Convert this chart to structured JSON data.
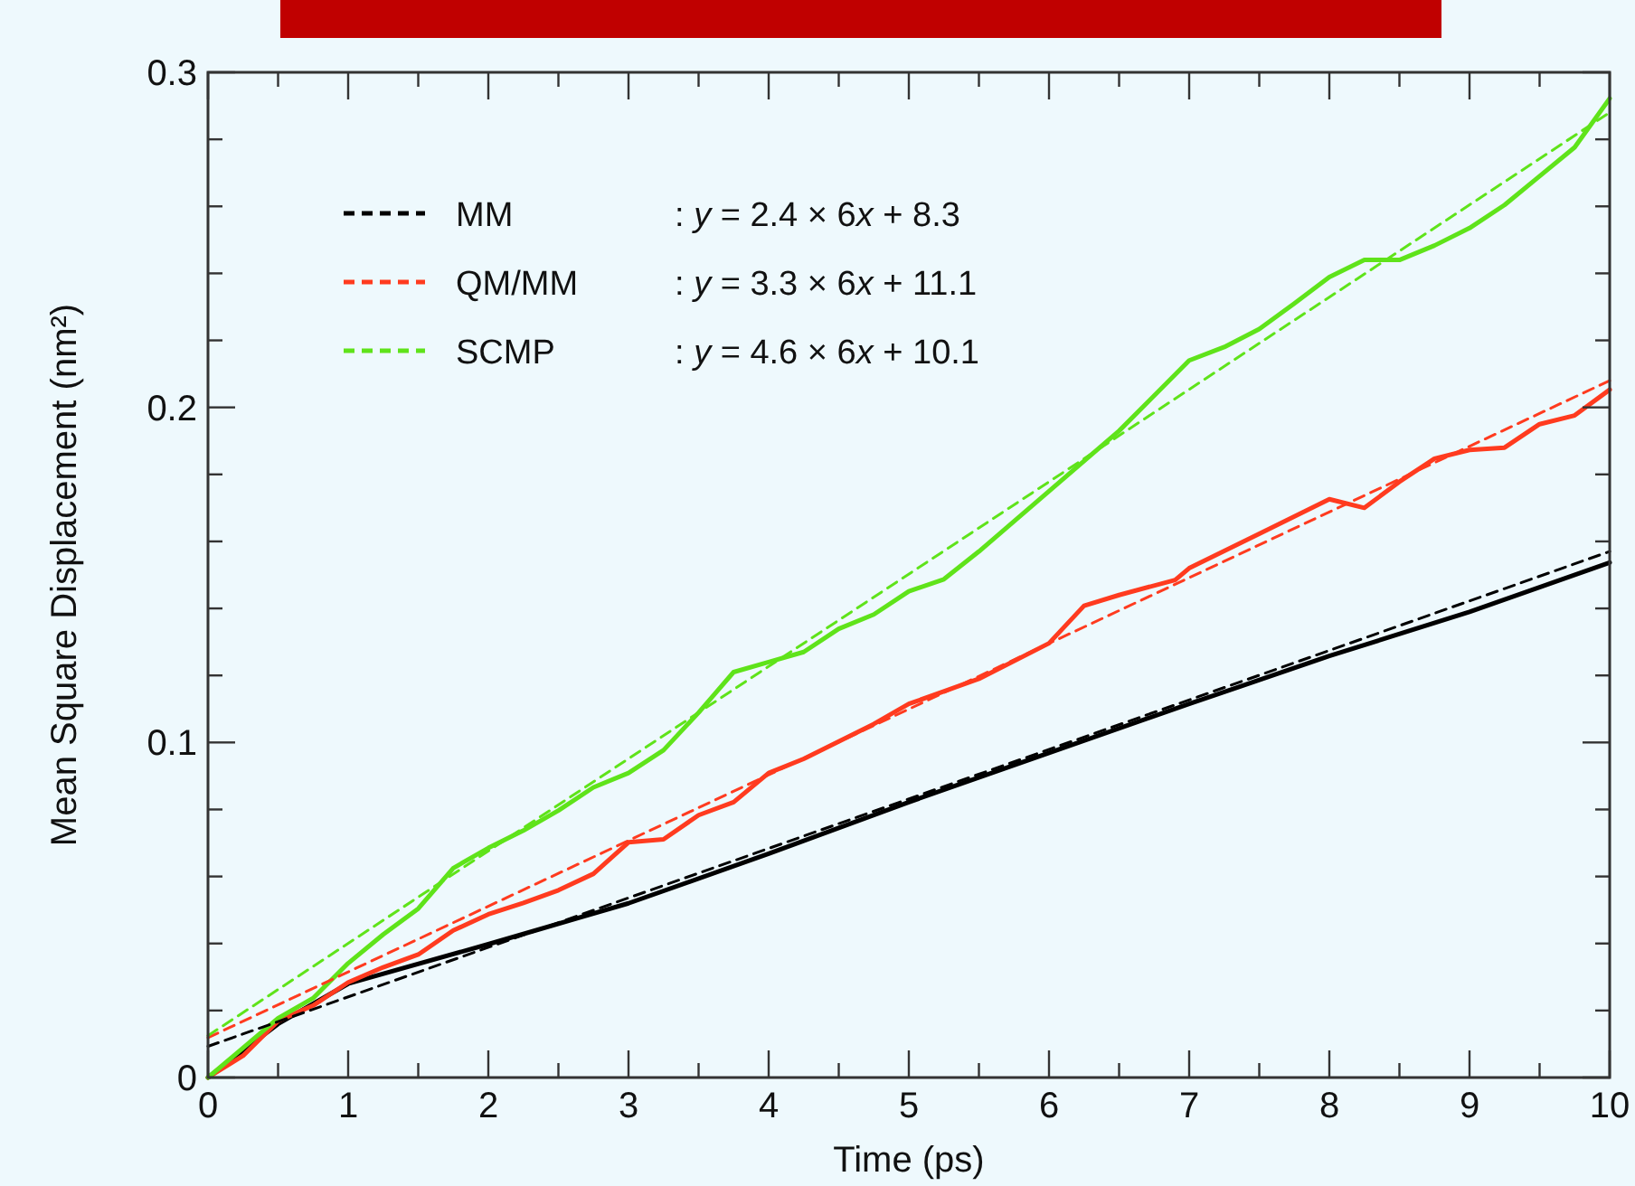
{
  "chart_data": {
    "type": "line",
    "xlabel": "Time (ps)",
    "ylabel": "Mean Square Displacement (nm²)",
    "xlim": [
      0,
      10
    ],
    "ylim": [
      0,
      0.3
    ],
    "xticks": [
      0,
      {
        "value": 0.5,
        "label": null
      },
      1,
      {
        "value": 1.5,
        "label": null
      },
      2,
      {
        "value": 2.5,
        "label": null
      },
      3,
      {
        "value": 3.5,
        "label": null
      },
      4,
      {
        "value": 4.5,
        "label": null
      },
      5,
      {
        "value": 5.5,
        "label": null
      },
      6,
      {
        "value": 6.5,
        "label": null
      },
      7,
      {
        "value": 7.5,
        "label": null
      },
      8,
      {
        "value": 8.5,
        "label": null
      },
      9,
      {
        "value": 9.5,
        "label": null
      },
      10
    ],
    "yticks": [
      0,
      {
        "value": 0.02,
        "label": null
      },
      {
        "value": 0.04,
        "label": null
      },
      {
        "value": 0.06,
        "label": null
      },
      {
        "value": 0.08,
        "label": null
      },
      0.1,
      {
        "value": 0.12,
        "label": null
      },
      {
        "value": 0.14,
        "label": null
      },
      {
        "value": 0.16,
        "label": null
      },
      {
        "value": 0.18,
        "label": null
      },
      0.2,
      {
        "value": 0.22,
        "label": null
      },
      {
        "value": 0.24,
        "label": null
      },
      {
        "value": 0.26,
        "label": null
      },
      {
        "value": 0.28,
        "label": null
      },
      0.3
    ],
    "grid": false,
    "legend": "top left",
    "marker": "none",
    "series": [
      {
        "color": "#000000",
        "line_style": "solid",
        "x": [
          0,
          0.5,
          1,
          2,
          3,
          4,
          5,
          6,
          7,
          8,
          9,
          10
        ],
        "values": [
          0,
          0.016,
          0.028,
          0.0398,
          0.052,
          0.0668,
          0.0822,
          0.0969,
          0.1115,
          0.1258,
          0.139,
          0.1537
        ]
      },
      {
        "color": "#ff3b1f",
        "line_style": "solid",
        "x": [
          0,
          0.25,
          0.5,
          0.75,
          1,
          1.25,
          1.5,
          1.75,
          2,
          2.25,
          2.5,
          2.75,
          3,
          3.25,
          3.5,
          3.75,
          4,
          4.25,
          4.5,
          4.75,
          5,
          5.5,
          6,
          6.25,
          6.5,
          6.9,
          7,
          7.5,
          8,
          8.25,
          8.5,
          8.75,
          9,
          9.25,
          9.5,
          9.75,
          10
        ],
        "values": [
          0,
          0.0065,
          0.0169,
          0.0215,
          0.0284,
          0.0329,
          0.0367,
          0.0439,
          0.0487,
          0.0521,
          0.0559,
          0.0608,
          0.0702,
          0.0711,
          0.0783,
          0.0822,
          0.0909,
          0.0951,
          0.1003,
          0.1055,
          0.1115,
          0.119,
          0.1296,
          0.1408,
          0.144,
          0.1485,
          0.152,
          0.1623,
          0.1726,
          0.17,
          0.1778,
          0.1847,
          0.1873,
          0.188,
          0.195,
          0.1976,
          0.2053
        ]
      },
      {
        "color": "#5fe31a",
        "line_style": "solid",
        "x": [
          0,
          0.5,
          0.75,
          1,
          1.25,
          1.5,
          1.75,
          2,
          2.25,
          2.5,
          2.75,
          3,
          3.25,
          3.5,
          3.75,
          4,
          4.25,
          4.5,
          4.75,
          5,
          5.25,
          5.5,
          6,
          6.5,
          7,
          7.25,
          7.5,
          7.75,
          8,
          8.25,
          8.5,
          8.75,
          9,
          9.25,
          9.5,
          9.75,
          10
        ],
        "values": [
          0,
          0.0177,
          0.0237,
          0.0341,
          0.0427,
          0.0504,
          0.0625,
          0.0685,
          0.0737,
          0.0797,
          0.0866,
          0.0909,
          0.0977,
          0.1089,
          0.121,
          0.124,
          0.127,
          0.1339,
          0.1382,
          0.1451,
          0.1487,
          0.157,
          0.175,
          0.193,
          0.214,
          0.218,
          0.2234,
          0.231,
          0.2389,
          0.244,
          0.244,
          0.2483,
          0.2535,
          0.2604,
          0.269,
          0.2776,
          0.2922
        ]
      },
      {
        "name": "MM",
        "color": "#000000",
        "line_style": "dashed",
        "x": [
          0,
          10
        ],
        "values": [
          0.0093,
          0.157
        ]
      },
      {
        "name": "QM/MM",
        "color": "#ff3b1f",
        "line_style": "dashed",
        "x": [
          0,
          10
        ],
        "values": [
          0.0119,
          0.208
        ]
      },
      {
        "name": "SCMP",
        "color": "#5fe31a",
        "line_style": "dashed",
        "x": [
          0,
          10
        ],
        "values": [
          0.0125,
          0.288
        ]
      }
    ],
    "annotations": [
      ": y = 2.4 × 6x + 8.3",
      ": y = 3.3 × 6x + 11.1",
      ": y = 4.6 × 6x + 10.1"
    ]
  }
}
